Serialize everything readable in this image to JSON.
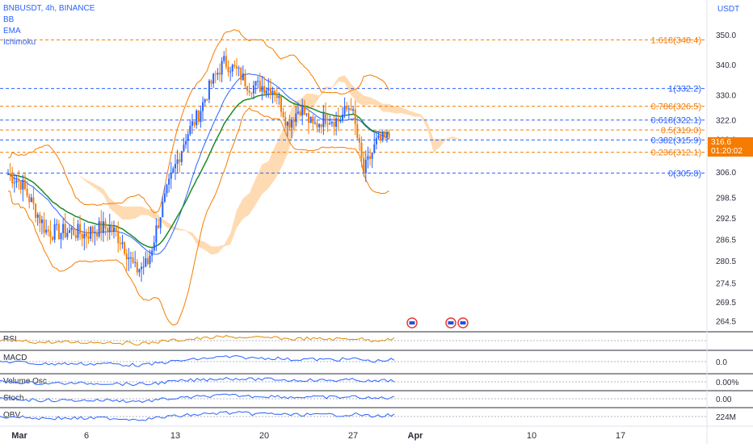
{
  "header": {
    "symbol_line": "BNBUSDT, 4h, BINANCE",
    "indicators": [
      "BB",
      "EMA",
      "Ichimoku"
    ],
    "currency": "USDT"
  },
  "price_tag": {
    "price": "316.6",
    "countdown": "01:20:02"
  },
  "colors": {
    "candle": "#2962ff",
    "bb": "#f57c00",
    "ema": "#1b8a2a",
    "fib": "#f57c00",
    "fib_blue": "#2962ff",
    "cloud_up": "#ffcf9a",
    "cloud_down": "#a9bdf5",
    "rsi": "#e08a00"
  },
  "chart_data": [
    {
      "type": "candlestick",
      "title": "BNBUSDT, 4h, BINANCE",
      "ylabel": "USDT",
      "y_scale": "log",
      "ylim": [
        262,
        360
      ],
      "y_ticks": [
        "350.0",
        "340.0",
        "330.0",
        "322.0",
        "316.0",
        "306.0",
        "298.5",
        "292.5",
        "286.5",
        "280.5",
        "274.5",
        "269.5",
        "264.5"
      ],
      "x_ticks": [
        "Mar",
        "6",
        "13",
        "20",
        "27",
        "Apr",
        "10",
        "17"
      ],
      "close_series_day": [
        [
          0,
          305.5
        ],
        [
          1,
          303
        ],
        [
          2,
          296
        ],
        [
          3,
          289
        ],
        [
          4,
          288.5
        ],
        [
          5,
          289
        ],
        [
          6,
          288
        ],
        [
          7,
          289.5
        ],
        [
          8,
          290
        ],
        [
          9,
          286
        ],
        [
          10,
          278
        ],
        [
          11,
          280
        ],
        [
          12,
          294
        ],
        [
          13,
          306
        ],
        [
          14,
          317
        ],
        [
          15,
          324
        ],
        [
          16,
          334
        ],
        [
          17,
          341
        ],
        [
          18,
          338
        ],
        [
          19,
          333
        ],
        [
          20,
          333
        ],
        [
          21,
          332
        ],
        [
          22,
          321
        ],
        [
          23,
          326
        ],
        [
          24,
          320
        ],
        [
          25,
          323
        ],
        [
          26,
          322
        ],
        [
          27,
          327
        ],
        [
          28,
          306
        ],
        [
          29,
          315
        ],
        [
          30,
          316.6
        ]
      ],
      "fib_levels": [
        {
          "label": "1.618(348.4)",
          "value": 348.4
        },
        {
          "label": "1(332.2)",
          "value": 332.2
        },
        {
          "label": "0.786(326.5)",
          "value": 326.5
        },
        {
          "label": "0.618(322.1)",
          "value": 322.1
        },
        {
          "label": "0.5(319.0)",
          "value": 319.0
        },
        {
          "label": "0.382(315.9)",
          "value": 315.9
        },
        {
          "label": "0.236(312.1)",
          "value": 312.1
        },
        {
          "label": "0(305.8)",
          "value": 305.8
        }
      ],
      "series": [
        {
          "name": "BB"
        },
        {
          "name": "EMA"
        },
        {
          "name": "Ichimoku"
        }
      ]
    },
    {
      "type": "line",
      "title": "RSI",
      "series": [
        {
          "name": "RSI"
        }
      ]
    },
    {
      "type": "line",
      "title": "MACD",
      "y_ticks": [
        "0.0"
      ],
      "series": [
        {
          "name": "MACD"
        }
      ]
    },
    {
      "type": "line",
      "title": "Volume Osc",
      "y_ticks": [
        "0.00%"
      ],
      "series": [
        {
          "name": "Volume Osc"
        }
      ]
    },
    {
      "type": "line",
      "title": "Stoch",
      "y_ticks": [
        "0.00"
      ],
      "series": [
        {
          "name": "Stoch"
        }
      ]
    },
    {
      "type": "line",
      "title": "OBV",
      "y_ticks": [
        "224M"
      ],
      "series": [
        {
          "name": "OBV"
        }
      ]
    }
  ]
}
